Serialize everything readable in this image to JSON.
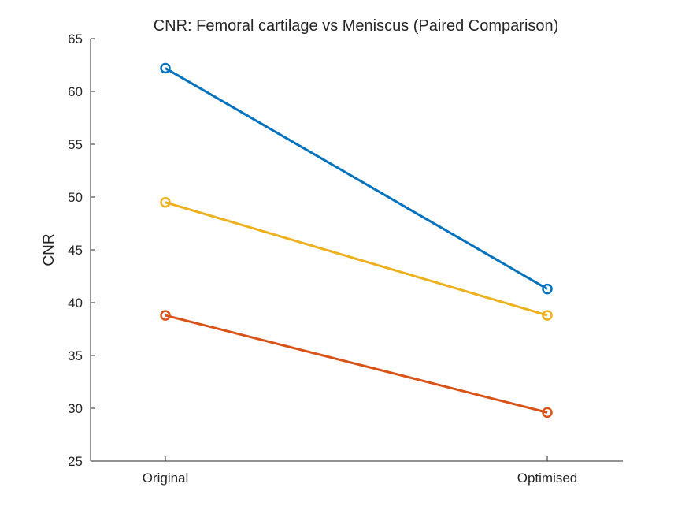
{
  "chart_data": {
    "type": "line",
    "title": "CNR: Femoral cartilage vs Meniscus (Paired Comparison)",
    "xlabel": "",
    "ylabel": "CNR",
    "categories": [
      "Original",
      "Optimised"
    ],
    "ylim": [
      25,
      65
    ],
    "yticks": [
      25,
      30,
      35,
      40,
      45,
      50,
      55,
      60,
      65
    ],
    "grid": false,
    "legend": "none",
    "marker": "circle",
    "series": [
      {
        "values": [
          62.2,
          41.3
        ],
        "color": "#0072BD"
      },
      {
        "values": [
          38.8,
          29.6
        ],
        "color": "#D95319"
      },
      {
        "values": [
          49.5,
          38.8
        ],
        "color": "#EDB120"
      }
    ]
  }
}
